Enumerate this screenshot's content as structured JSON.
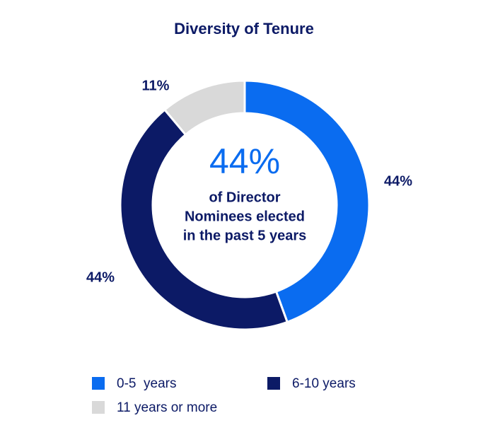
{
  "chart_data": {
    "type": "donut",
    "title": "Diversity of Tenure",
    "categories": [
      "0-5  years",
      "6-10 years",
      "11 years or more"
    ],
    "values": [
      44,
      44,
      11
    ],
    "value_labels": [
      "44%",
      "44%",
      "11%"
    ],
    "colors": [
      "#0a6cf0",
      "#0c1a66",
      "#d9d9d9"
    ],
    "center_value": "44%",
    "center_text": [
      "of Director",
      "Nominees elected",
      "in the past 5 years"
    ]
  }
}
